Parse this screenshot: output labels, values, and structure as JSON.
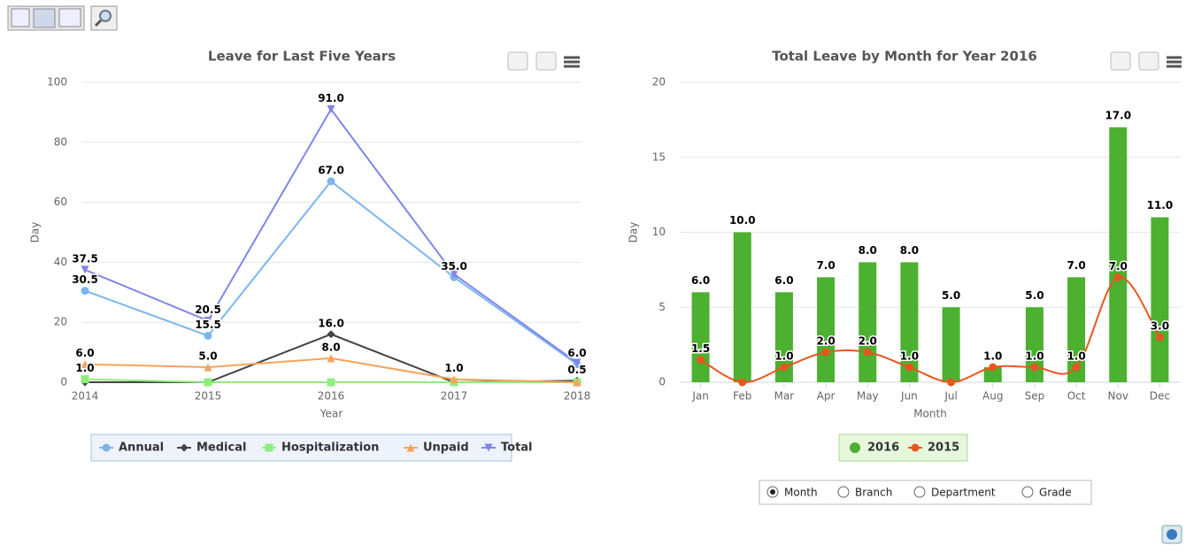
{
  "chart_data": [
    {
      "type": "line",
      "title": "Leave for Last Five Years",
      "x_label": "Year",
      "y_label": "Day",
      "categories": [
        "2014",
        "2015",
        "2016",
        "2017",
        "2018"
      ],
      "ylim": [
        0,
        100
      ],
      "yticks": [
        0,
        20,
        40,
        60,
        80,
        100
      ],
      "grid": true,
      "legend": "bottom",
      "series": [
        {
          "name": "Annual",
          "color": "#7cb5ec",
          "marker": "circle",
          "values": [
            30.5,
            15.5,
            67,
            35,
            6
          ],
          "value_labels": [
            "30.5",
            "15.5",
            "67.0",
            "35.0",
            "6.0"
          ]
        },
        {
          "name": "Medical",
          "color": "#434348",
          "marker": "diamond",
          "values": [
            0,
            0,
            16,
            0,
            0.5
          ],
          "value_labels": [
            null,
            null,
            "16.0",
            null,
            "0.5"
          ]
        },
        {
          "name": "Hospitalization",
          "color": "#90ed7d",
          "marker": "square",
          "values": [
            1,
            0,
            0,
            0,
            0
          ],
          "value_labels": [
            "1.0",
            null,
            null,
            null,
            null
          ]
        },
        {
          "name": "Unpaid",
          "color": "#f7a35c",
          "marker": "triangle",
          "values": [
            6,
            5,
            8,
            1,
            0
          ],
          "value_labels": [
            "6.0",
            "5.0",
            "8.0",
            "1.0",
            null
          ]
        },
        {
          "name": "Total",
          "color": "#8085e9",
          "marker": "triangle-down",
          "values": [
            37.5,
            20.5,
            91,
            36,
            6.5
          ],
          "value_labels": [
            "37.5",
            "20.5",
            "91.0",
            null,
            null
          ]
        }
      ]
    },
    {
      "type": "bar",
      "title": "Total Leave by Month for Year 2016",
      "x_label": "Month",
      "y_label": "Day",
      "categories": [
        "Jan",
        "Feb",
        "Mar",
        "Apr",
        "May",
        "Jun",
        "Jul",
        "Aug",
        "Sep",
        "Oct",
        "Nov",
        "Dec"
      ],
      "ylim": [
        0,
        20
      ],
      "yticks": [
        0,
        5,
        10,
        15,
        20
      ],
      "grid": true,
      "legend": "bottom",
      "series": [
        {
          "name": "2016",
          "type": "bar",
          "color": "#4cb030",
          "values": [
            6,
            10,
            6,
            7,
            8,
            8,
            5,
            1,
            5,
            7,
            17,
            11
          ],
          "value_labels": [
            "6.0",
            "10.0",
            "6.0",
            "7.0",
            "8.0",
            "8.0",
            "5.0",
            "1.0",
            "5.0",
            "7.0",
            "17.0",
            "11.0"
          ]
        },
        {
          "name": "2015",
          "type": "spline",
          "color": "#e8561f",
          "values": [
            1.5,
            0,
            1,
            2,
            2,
            1,
            0,
            1,
            1,
            1,
            7,
            3
          ],
          "value_labels": [
            "1.5",
            null,
            "1.0",
            "2.0",
            "2.0",
            "1.0",
            null,
            "1.0",
            "1.0",
            "1.0",
            "7.0",
            "3.0"
          ]
        }
      ]
    }
  ],
  "filter": {
    "options": [
      "Month",
      "Branch",
      "Department",
      "Grade"
    ],
    "selected": 0
  }
}
